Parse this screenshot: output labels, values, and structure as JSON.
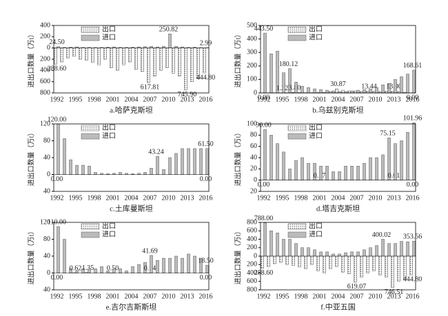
{
  "chart_data": [
    {
      "type": "bar",
      "title": "a.哈萨克斯坦",
      "ylabel": "进出口数量（万t）",
      "categories": [
        "1992",
        null,
        null,
        "1995",
        null,
        null,
        "1998",
        null,
        null,
        "2001",
        null,
        null,
        "2004",
        null,
        null,
        "2007",
        null,
        null,
        "2010",
        null,
        null,
        "2013",
        null,
        null,
        "2016"
      ],
      "series": [
        {
          "name": "出口",
          "values": [
            -288.6,
            -250,
            -180,
            -150,
            -200,
            -220,
            -260,
            -300,
            -200,
            -350,
            -400,
            -300,
            -250,
            -380,
            -420,
            -617.81,
            -500,
            -400,
            -350,
            -450,
            -500,
            -745.9,
            -600,
            -550,
            -444.8
          ],
          "value_labels": [
            "288.60",
            null,
            null,
            null,
            null,
            null,
            null,
            null,
            null,
            null,
            null,
            null,
            null,
            null,
            null,
            "617.81",
            null,
            null,
            null,
            null,
            null,
            "745.90",
            null,
            null,
            "444.80"
          ]
        },
        {
          "name": "进口",
          "values": [
            24.5,
            10,
            15,
            20,
            10,
            10,
            8,
            10,
            15,
            20,
            10,
            10,
            15,
            20,
            25,
            30,
            20,
            30,
            250.82,
            30,
            20,
            10,
            15,
            5,
            2.99
          ],
          "value_labels": [
            "24.50",
            null,
            null,
            null,
            null,
            null,
            null,
            null,
            null,
            null,
            null,
            null,
            null,
            null,
            null,
            null,
            null,
            null,
            "250.82",
            null,
            null,
            null,
            null,
            null,
            "2.99"
          ]
        }
      ],
      "ylim": [
        -800,
        400
      ],
      "yticks": [
        400,
        200,
        0,
        {
          "value": -200,
          "label": "200"
        },
        {
          "value": -400,
          "label": "400"
        },
        {
          "value": -600,
          "label": "600"
        },
        {
          "value": -800,
          "label": "800"
        }
      ]
    },
    {
      "type": "bar",
      "title": "b.乌兹别克斯坦",
      "ylabel": "进出口数量（万t）",
      "categories": [
        "1992",
        null,
        null,
        "1995",
        null,
        null,
        "1998",
        null,
        null,
        "2001",
        null,
        null,
        "2004",
        null,
        null,
        "2007",
        null,
        null,
        "2010",
        null,
        null,
        "2013",
        null,
        null,
        "2016"
      ],
      "series": [
        {
          "name": "出口",
          "values": [
            0,
            0.5,
            1,
            1.22,
            2,
            3.8,
            3,
            2,
            2,
            3,
            5,
            10,
            30.87,
            20,
            15,
            15,
            10,
            13.44,
            12,
            10,
            13,
            13,
            10,
            5,
            0
          ],
          "value_labels": [
            "0.00",
            null,
            null,
            "1.22",
            null,
            "3.80",
            null,
            null,
            null,
            null,
            null,
            null,
            "30.87",
            null,
            null,
            null,
            null,
            "13.44",
            null,
            null,
            null,
            "13.00",
            null,
            null,
            "0.00"
          ]
        },
        {
          "name": "进口",
          "values": [
            443.5,
            290,
            310,
            150,
            180.12,
            80,
            50,
            40,
            30,
            25,
            20,
            15,
            10,
            10,
            15,
            20,
            25,
            30,
            40,
            60,
            70,
            100,
            120,
            140,
            168.61
          ],
          "value_labels": [
            "443.50",
            null,
            null,
            null,
            "180.12",
            null,
            null,
            null,
            null,
            null,
            null,
            null,
            null,
            null,
            null,
            null,
            null,
            null,
            null,
            null,
            null,
            null,
            null,
            null,
            "168.61"
          ]
        }
      ],
      "ylim": [
        0,
        500
      ],
      "yticks": [
        0,
        100,
        200,
        300,
        400,
        500
      ]
    },
    {
      "type": "bar",
      "title": "c.土库曼斯坦",
      "ylabel": "进出口数量（万t）",
      "categories": [
        "1992",
        null,
        null,
        "1995",
        null,
        null,
        "1998",
        null,
        null,
        "2001",
        null,
        null,
        "2004",
        null,
        null,
        "2007",
        null,
        null,
        "2010",
        null,
        null,
        "2013",
        null,
        null,
        "2016"
      ],
      "series": [
        {
          "name": "出口",
          "values": [
            0,
            0,
            0,
            0,
            0,
            0,
            0,
            0,
            0,
            0,
            0,
            0,
            0,
            0,
            0,
            0,
            0,
            0,
            0,
            0,
            0,
            0,
            0,
            0,
            0
          ],
          "value_labels": [
            "0.00",
            null,
            null,
            null,
            null,
            null,
            null,
            null,
            null,
            null,
            null,
            null,
            null,
            null,
            null,
            null,
            null,
            null,
            null,
            null,
            null,
            null,
            null,
            null,
            "0.00"
          ]
        },
        {
          "name": "进口",
          "values": [
            120,
            85,
            35,
            22,
            22,
            20,
            5,
            3,
            2,
            3,
            5,
            3,
            2,
            3,
            5,
            15,
            43.24,
            12,
            40,
            50,
            61.5,
            61.5,
            61.5,
            61.5,
            61.5
          ],
          "value_labels": [
            "120.00",
            null,
            null,
            null,
            null,
            null,
            null,
            null,
            null,
            null,
            null,
            null,
            null,
            null,
            null,
            null,
            "43.24",
            null,
            null,
            null,
            null,
            null,
            null,
            null,
            "61.50"
          ]
        }
      ],
      "ylim": [
        -40,
        120
      ],
      "yticks": [
        {
          "value": -40,
          "label": "40"
        },
        0,
        40,
        80,
        120
      ]
    },
    {
      "type": "bar",
      "title": "d.塔吉克斯坦",
      "ylabel": "进出口数量（万t）",
      "categories": [
        "1992",
        null,
        null,
        "1995",
        null,
        null,
        "1998",
        null,
        null,
        "2001",
        null,
        null,
        "2004",
        null,
        null,
        "2007",
        null,
        null,
        "2010",
        null,
        null,
        "2013",
        null,
        null,
        "2016"
      ],
      "series": [
        {
          "name": "出口",
          "values": [
            0,
            0,
            0,
            0,
            0,
            0,
            0,
            0,
            0,
            0.17,
            0,
            0,
            0,
            0,
            0,
            0,
            0,
            0,
            0,
            0,
            0,
            0.01,
            0,
            0,
            0
          ],
          "value_labels": [
            "0.00",
            null,
            null,
            null,
            null,
            null,
            null,
            null,
            null,
            "0.17",
            null,
            null,
            null,
            null,
            null,
            null,
            null,
            null,
            null,
            null,
            null,
            "0.01",
            null,
            null,
            "0.00"
          ]
        },
        {
          "name": "进口",
          "values": [
            90,
            80,
            65,
            50,
            20,
            35,
            40,
            30,
            30,
            25,
            25,
            15,
            15,
            25,
            25,
            25,
            30,
            40,
            40,
            45,
            75.15,
            65,
            70,
            85,
            101.96
          ],
          "value_labels": [
            "90.00",
            null,
            null,
            null,
            null,
            null,
            null,
            null,
            null,
            null,
            null,
            null,
            null,
            null,
            null,
            null,
            null,
            null,
            null,
            null,
            "75.15",
            null,
            null,
            null,
            "101.96"
          ]
        }
      ],
      "ylim": [
        -20,
        100
      ],
      "yticks": [
        {
          "value": -20,
          "label": "20"
        },
        0,
        20,
        40,
        60,
        80,
        100
      ]
    },
    {
      "type": "bar",
      "title": "e.吉尔吉斯斯坦",
      "ylabel": "进出口数量（万t）",
      "categories": [
        "1992",
        null,
        null,
        "1995",
        null,
        null,
        "1998",
        null,
        null,
        "2001",
        null,
        null,
        "2004",
        null,
        null,
        "2007",
        null,
        null,
        "2010",
        null,
        null,
        "2013",
        null,
        null,
        "2016"
      ],
      "series": [
        {
          "name": "出口",
          "values": [
            0,
            0,
            0,
            0.62,
            0,
            1.35,
            0,
            0,
            0,
            0.5,
            0,
            0,
            0,
            0,
            0,
            0.14,
            0,
            0,
            0,
            0,
            0,
            0,
            0,
            0,
            0
          ],
          "value_labels": [
            "0.00",
            null,
            null,
            "0.62",
            null,
            "1.35",
            null,
            null,
            null,
            "0.50",
            null,
            null,
            null,
            null,
            null,
            "0.14",
            null,
            null,
            null,
            null,
            null,
            null,
            null,
            null,
            "0.00"
          ]
        },
        {
          "name": "进口",
          "values": [
            110,
            80,
            10,
            5,
            10,
            10,
            10,
            15,
            5,
            10,
            10,
            5,
            15,
            20,
            25,
            41.69,
            30,
            35,
            35,
            40,
            35,
            45,
            40,
            35,
            18.5
          ],
          "value_labels": [
            "110.00",
            null,
            null,
            null,
            null,
            null,
            null,
            null,
            null,
            null,
            null,
            null,
            null,
            null,
            null,
            "41.69",
            null,
            null,
            null,
            null,
            null,
            null,
            null,
            null,
            "18.50"
          ]
        }
      ],
      "ylim": [
        -40,
        120
      ],
      "yticks": [
        {
          "value": -40,
          "label": "40"
        },
        0,
        40,
        80,
        120
      ]
    },
    {
      "type": "bar",
      "title": "f.中亚五国",
      "ylabel": "进出口数量（万t）",
      "categories": [
        "1992",
        null,
        null,
        "1995",
        null,
        null,
        "1998",
        null,
        null,
        "2001",
        null,
        null,
        "2004",
        null,
        null,
        "2007",
        null,
        null,
        "2010",
        null,
        null,
        "2013",
        null,
        null,
        "2016"
      ],
      "series": [
        {
          "name": "出口",
          "values": [
            -288.6,
            -250,
            -180,
            -150,
            -200,
            -220,
            -260,
            -300,
            -200,
            -350,
            -400,
            -300,
            -250,
            -380,
            -420,
            -619.07,
            -500,
            -400,
            -350,
            -450,
            -500,
            -746.51,
            -600,
            -550,
            -444.8
          ],
          "value_labels": [
            "288.60",
            null,
            null,
            null,
            null,
            null,
            null,
            null,
            null,
            null,
            null,
            null,
            null,
            null,
            null,
            "619.07",
            null,
            null,
            null,
            null,
            null,
            "746.51",
            null,
            null,
            "444.80"
          ]
        },
        {
          "name": "进口",
          "values": [
            788,
            600,
            550,
            400,
            400,
            300,
            200,
            200,
            150,
            100,
            100,
            50,
            50,
            80,
            100,
            100,
            150,
            200,
            250,
            400.02,
            300,
            300,
            350,
            340,
            353.56
          ],
          "value_labels": [
            "788.00",
            null,
            null,
            null,
            null,
            null,
            null,
            null,
            null,
            null,
            null,
            null,
            null,
            null,
            null,
            null,
            null,
            null,
            null,
            "400.02",
            null,
            null,
            null,
            null,
            "353.56"
          ]
        }
      ],
      "ylim": [
        -800,
        800
      ],
      "yticks": [
        {
          "value": -800,
          "label": "800"
        },
        {
          "value": -600,
          "label": "600"
        },
        {
          "value": -400,
          "label": "400"
        },
        {
          "value": -200,
          "label": "200"
        },
        0,
        200,
        400,
        600,
        800
      ]
    }
  ]
}
